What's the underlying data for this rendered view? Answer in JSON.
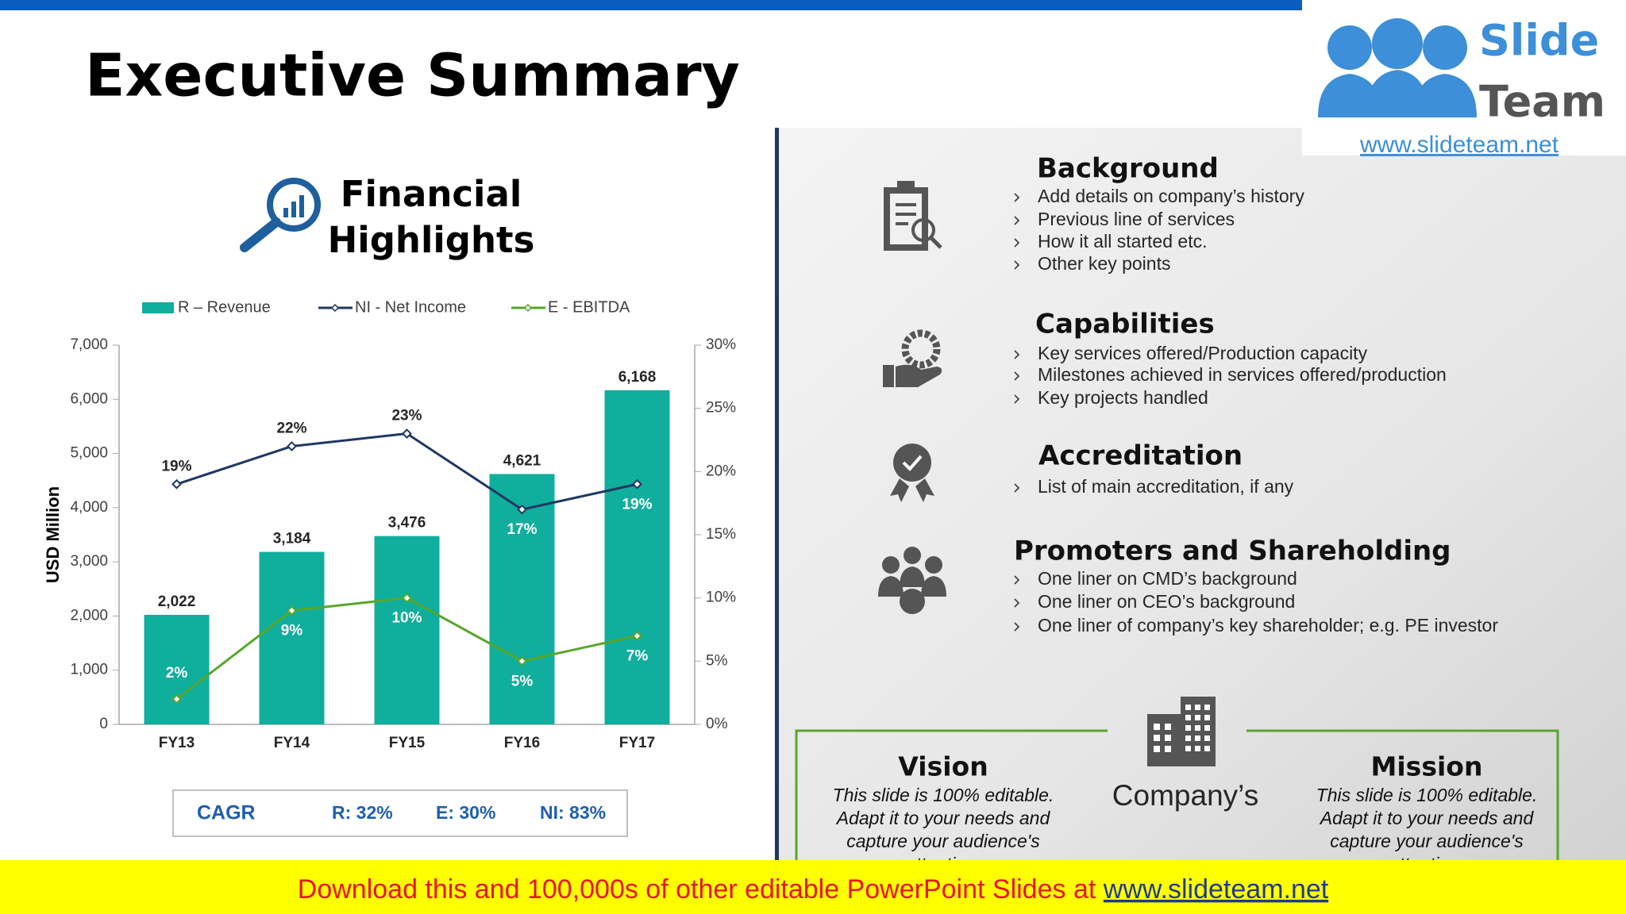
{
  "header": {
    "title": "Executive Summary"
  },
  "logo": {
    "word1": "Slide",
    "word2": "Team",
    "url": "www.slideteam.net"
  },
  "financial_heading": [
    "Financial",
    "Highlights"
  ],
  "chart_data": {
    "type": "bar",
    "categories": [
      "FY13",
      "FY14",
      "FY15",
      "FY16",
      "FY17"
    ],
    "y_label": "USD Million",
    "ylim": [
      0,
      7000
    ],
    "yticks": [
      0,
      {
        "value": 1000,
        "label": "1,000"
      },
      {
        "value": 2000,
        "label": "2,000"
      },
      {
        "value": 3000,
        "label": "3,000"
      },
      {
        "value": 4000,
        "label": "4,000"
      },
      {
        "value": 5000,
        "label": "5,000"
      },
      {
        "value": 6000,
        "label": "6,000"
      },
      {
        "value": 7000,
        "label": "7,000"
      }
    ],
    "y2lim": [
      0,
      30
    ],
    "y2ticks": [
      {
        "value": 0,
        "label": "0%"
      },
      {
        "value": 5,
        "label": "5%"
      },
      {
        "value": 10,
        "label": "10%"
      },
      {
        "value": 15,
        "label": "15%"
      },
      {
        "value": 20,
        "label": "20%"
      },
      {
        "value": 25,
        "label": "25%"
      },
      {
        "value": 30,
        "label": "30%"
      }
    ],
    "grid": false,
    "series": [
      {
        "name": "R – Revenue",
        "type": "bar",
        "color": "#10ae9c",
        "values": [
          2022,
          3184,
          3476,
          4621,
          6168
        ],
        "value_labels": [
          "2,022",
          "3,184",
          "3,476",
          "4,621",
          "6,168"
        ]
      },
      {
        "name": "NI - Net Income",
        "type": "line",
        "axis": "y2",
        "color": "#1f3763",
        "values": [
          19,
          22,
          23,
          17,
          19
        ],
        "value_labels": [
          "19%",
          "22%",
          "23%",
          "17%",
          "19%"
        ]
      },
      {
        "name": "E - EBITDA",
        "type": "line",
        "axis": "y2",
        "color": "#58a62c",
        "values": [
          2,
          9,
          10,
          5,
          7
        ],
        "value_labels": [
          "2%",
          "9%",
          "10%",
          "5%",
          "7%"
        ]
      }
    ]
  },
  "cagr": {
    "label": "CAGR",
    "items": [
      "R: 32%",
      "E: 30%",
      "NI: 83%"
    ]
  },
  "sections": [
    {
      "title": "Background",
      "bullets": [
        "Add details on company’s history",
        "Previous line of services",
        "How it all started etc.",
        "Other key points"
      ]
    },
    {
      "title": "Capabilities",
      "bullets": [
        "Key services offered/Production capacity",
        "Milestones achieved in services offered/production",
        "Key projects handled"
      ]
    },
    {
      "title": "Accreditation",
      "bullets": [
        "List of main accreditation, if any"
      ]
    },
    {
      "title": "Promoters and Shareholding",
      "bullets": [
        "One liner on CMD’s background",
        "One liner on CEO’s background",
        "One liner of company’s key shareholder; e.g. PE investor"
      ]
    }
  ],
  "company": "Company’s",
  "vision": {
    "title": "Vision",
    "lines": [
      "This slide is 100% editable.",
      "Adapt it to your needs and",
      "capture your audience's",
      "attention."
    ]
  },
  "mission": {
    "title": "Mission",
    "lines": [
      "This slide is 100% editable.",
      "Adapt it to your needs and",
      "capture your audience's",
      "attention."
    ]
  },
  "footer": {
    "text": "Download this and 100,000s of other editable PowerPoint Slides at ",
    "link": "www.slideteam.net"
  }
}
